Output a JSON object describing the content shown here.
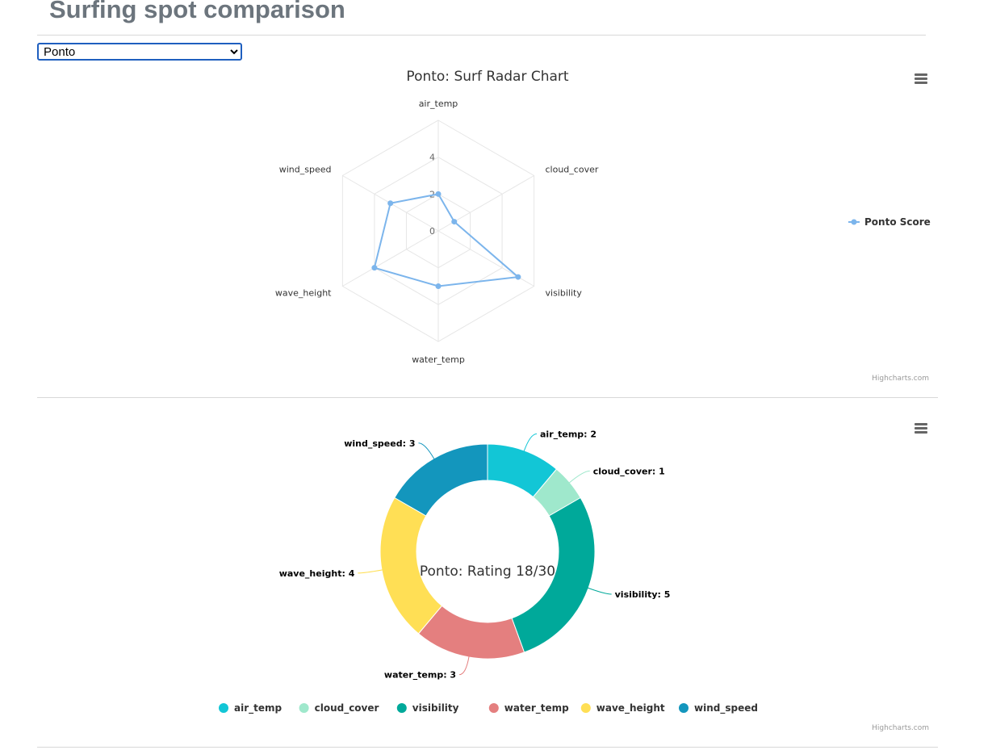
{
  "page": {
    "title": "Surfing spot comparison",
    "select": {
      "selected": "Ponto",
      "options": [
        "Ponto"
      ]
    }
  },
  "credits": "Highcharts.com",
  "colors": {
    "radar_series": "#7cb5ec",
    "air_temp": "#12c6d6",
    "cloud_cover": "#9fe8cc",
    "visibility": "#00a99a",
    "water_temp": "#e47f7f",
    "wave_height": "#ffdf55",
    "wind_speed": "#1396bd"
  },
  "chart_data": [
    {
      "type": "radar",
      "title": "Ponto: Surf Radar Chart",
      "categories": [
        "air_temp",
        "cloud_cover",
        "visibility",
        "water_temp",
        "wave_height",
        "wind_speed"
      ],
      "series": [
        {
          "name": "Ponto Score",
          "values": [
            2,
            1,
            5,
            3,
            4,
            3
          ]
        }
      ],
      "radial_ticks": [
        "0",
        "2",
        "4"
      ],
      "ylim": [
        0,
        6
      ],
      "legend": "right",
      "grid": true
    },
    {
      "type": "pie",
      "variant": "donut",
      "center_text": "Ponto: Rating 18/30",
      "categories": [
        "air_temp",
        "cloud_cover",
        "visibility",
        "water_temp",
        "wave_height",
        "wind_speed"
      ],
      "values": [
        2,
        1,
        5,
        3,
        4,
        3
      ],
      "data_labels": [
        "air_temp: 2",
        "cloud_cover: 1",
        "visibility: 5",
        "water_temp: 3",
        "wave_height: 4",
        "wind_speed: 3"
      ],
      "legend": "bottom"
    }
  ]
}
